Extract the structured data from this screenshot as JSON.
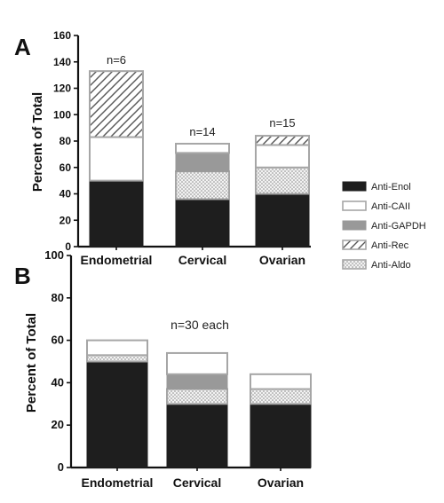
{
  "colors": {
    "Anti-Enol": "#1e1e1e",
    "Anti-CAII": "#ffffff",
    "Anti-GAPDH": "#999999",
    "Anti-Rec": "#ffffff",
    "Anti-Aldo": "#e3e3e3",
    "outline": "#a6a6a6",
    "axis": "#111111"
  },
  "legend": {
    "placement": "right",
    "entries": [
      {
        "name": "Anti-Enol",
        "pattern": "solid-dark"
      },
      {
        "name": "Anti-CAII",
        "pattern": "outline-white"
      },
      {
        "name": "Anti-GAPDH",
        "pattern": "solid-gray"
      },
      {
        "name": "Anti-Rec",
        "pattern": "hatch"
      },
      {
        "name": "Anti-Aldo",
        "pattern": "dots"
      }
    ]
  },
  "chart_data": [
    {
      "panel": "A",
      "type": "bar",
      "stacked": true,
      "ylabel": "Percent of Total",
      "xlabel": "",
      "ylim": [
        0,
        160
      ],
      "yticks": [
        0,
        20,
        40,
        60,
        80,
        100,
        120,
        140,
        160
      ],
      "categories": [
        "Endometrial",
        "Cervical",
        "Ovarian"
      ],
      "annotations": [
        "n=6",
        "n=14",
        "n=15"
      ],
      "series": [
        {
          "name": "Anti-Enol",
          "values": [
            50,
            36,
            40
          ]
        },
        {
          "name": "Anti-Aldo",
          "values": [
            0,
            21,
            20
          ]
        },
        {
          "name": "Anti-GAPDH",
          "values": [
            0,
            14,
            0
          ]
        },
        {
          "name": "Anti-CAII",
          "values": [
            33,
            7,
            17
          ]
        },
        {
          "name": "Anti-Rec",
          "values": [
            50,
            0,
            7
          ]
        }
      ]
    },
    {
      "panel": "B",
      "type": "bar",
      "stacked": true,
      "ylabel": "Percent of Total",
      "xlabel": "",
      "ylim": [
        0,
        100
      ],
      "yticks": [
        0,
        20,
        40,
        60,
        80,
        100
      ],
      "categories": [
        "Endometrial",
        "Cervical",
        "Ovarian"
      ],
      "annotations": [
        "n=30 each"
      ],
      "series": [
        {
          "name": "Anti-Enol",
          "values": [
            50,
            30,
            30
          ]
        },
        {
          "name": "Anti-Aldo",
          "values": [
            3,
            7,
            7
          ]
        },
        {
          "name": "Anti-GAPDH",
          "values": [
            0,
            7,
            0
          ]
        },
        {
          "name": "Anti-CAII",
          "values": [
            7,
            10,
            7
          ]
        },
        {
          "name": "Anti-Rec",
          "values": [
            0,
            0,
            0
          ]
        }
      ]
    }
  ]
}
